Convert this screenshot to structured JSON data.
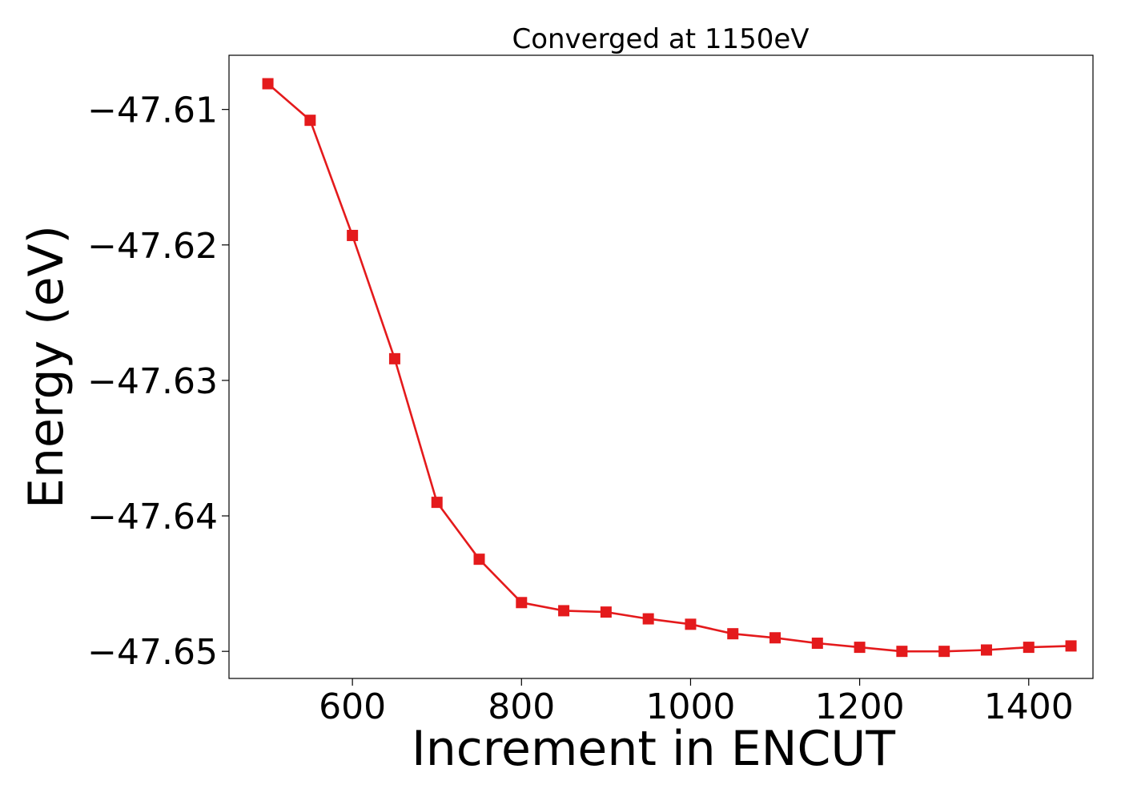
{
  "chart_data": {
    "type": "line",
    "title": "Converged at 1150eV",
    "xlabel": "Increment in ENCUT",
    "ylabel": "Energy (eV)",
    "xlim": [
      454,
      1476
    ],
    "ylim": [
      -47.652,
      -47.606
    ],
    "x_ticks": [
      600,
      800,
      1000,
      1200,
      1400
    ],
    "y_ticks": [
      -47.61,
      -47.62,
      -47.63,
      -47.64,
      -47.65
    ],
    "y_tick_labels": [
      "−47.61",
      "−47.62",
      "−47.63",
      "−47.64",
      "−47.65"
    ],
    "grid": false,
    "series": [
      {
        "color": "#e41a1c",
        "marker": "square",
        "x": [
          500,
          550,
          600,
          650,
          700,
          750,
          800,
          850,
          900,
          950,
          1000,
          1050,
          1100,
          1150,
          1200,
          1250,
          1300,
          1350,
          1400,
          1450
        ],
        "y": [
          -47.6081,
          -47.6108,
          -47.6193,
          -47.6284,
          -47.639,
          -47.6432,
          -47.6464,
          -47.647,
          -47.6471,
          -47.6476,
          -47.648,
          -47.6487,
          -47.649,
          -47.6494,
          -47.6497,
          -47.65,
          -47.65,
          -47.6499,
          -47.6497,
          -47.6496
        ]
      }
    ]
  }
}
